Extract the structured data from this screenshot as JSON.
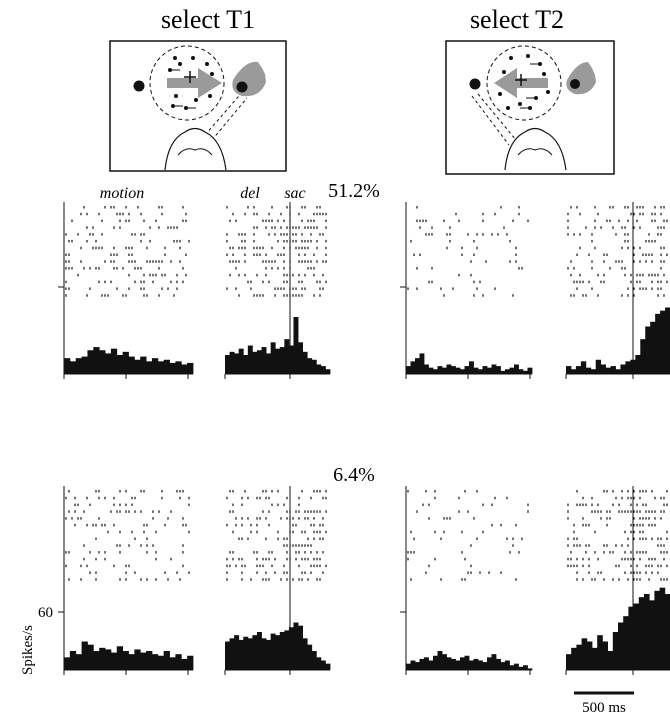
{
  "panels": {
    "t1_title": "select T1",
    "t2_title": "select T2"
  },
  "epochs": {
    "motion": "motion",
    "delay": "del",
    "saccade": "sac"
  },
  "conditions": [
    {
      "coherence": "51.2%",
      "columns": [
        {
          "id": "T1-motion",
          "trials": 14,
          "density": 0.28,
          "psth": [
            10,
            8,
            10,
            11,
            15,
            17,
            15,
            13,
            16,
            12,
            14,
            11,
            9,
            11,
            8,
            10,
            8,
            9,
            7,
            8,
            6,
            7
          ]
        },
        {
          "id": "T1-sac",
          "trials": 14,
          "density": 0.33,
          "psth": [
            12,
            14,
            13,
            16,
            12,
            18,
            14,
            15,
            17,
            13,
            20,
            16,
            17,
            22,
            18,
            36,
            20,
            14,
            10,
            9,
            6,
            5,
            3
          ]
        },
        {
          "id": "T2-motion",
          "trials": 14,
          "density": 0.11,
          "psth": [
            5,
            8,
            10,
            13,
            6,
            4,
            3,
            5,
            4,
            6,
            5,
            4,
            3,
            5,
            8,
            4,
            3,
            5,
            4,
            6,
            5,
            2,
            3,
            4,
            6,
            3,
            2,
            4
          ]
        },
        {
          "id": "T2-sac",
          "trials": 14,
          "density": 0.26,
          "psth": [
            5,
            3,
            5,
            8,
            4,
            3,
            9,
            6,
            4,
            5,
            3,
            6,
            8,
            9,
            12,
            22,
            30,
            33,
            38,
            40,
            42
          ]
        }
      ]
    },
    {
      "coherence": "6.4%",
      "columns": [
        {
          "id": "T1-motion",
          "trials": 14,
          "density": 0.22,
          "psth": [
            8,
            12,
            10,
            18,
            16,
            12,
            14,
            13,
            11,
            15,
            12,
            10,
            13,
            11,
            12,
            10,
            9,
            12,
            8,
            10,
            7,
            9
          ]
        },
        {
          "id": "T1-sac",
          "trials": 14,
          "density": 0.3,
          "psth": [
            18,
            20,
            22,
            19,
            21,
            20,
            22,
            24,
            20,
            19,
            23,
            22,
            24,
            25,
            27,
            30,
            28,
            20,
            16,
            12,
            8,
            6,
            4
          ]
        },
        {
          "id": "T2-motion",
          "trials": 14,
          "density": 0.11,
          "psth": [
            4,
            6,
            5,
            7,
            8,
            6,
            9,
            12,
            10,
            8,
            7,
            6,
            8,
            9,
            6,
            7,
            6,
            5,
            8,
            10,
            7,
            5,
            6,
            3,
            4,
            2,
            3,
            1
          ]
        },
        {
          "id": "T2-sac",
          "trials": 14,
          "density": 0.3,
          "psth": [
            10,
            14,
            16,
            20,
            18,
            14,
            22,
            18,
            12,
            24,
            30,
            34,
            40,
            42,
            46,
            48,
            44,
            50,
            52,
            48
          ]
        }
      ]
    }
  ],
  "yaxis": {
    "label": "Spikes/s",
    "tick": "60"
  },
  "scalebar": {
    "label": "500 ms"
  },
  "colors": {
    "ink": "#111111",
    "gray": "#9a9a9a"
  }
}
